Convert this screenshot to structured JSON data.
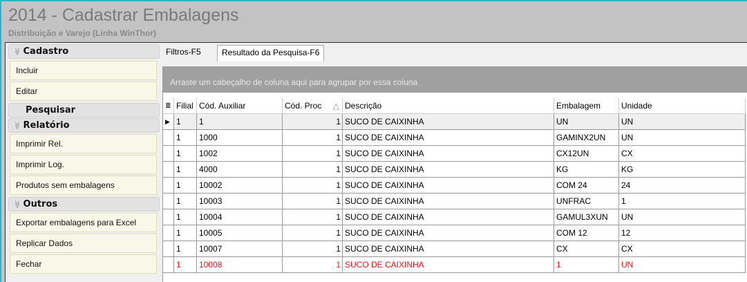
{
  "window": {
    "title": "2014 - Cadastrar Embalagens",
    "subtitle": "Distribuição e Varejo (Linha WinThor)"
  },
  "sidebar": {
    "groups": [
      {
        "label": "Cadastro",
        "items": [
          "Incluir",
          "Editar"
        ]
      },
      {
        "label": "Pesquisar",
        "items": []
      },
      {
        "label": "Relatório",
        "items": [
          "Imprimir Rel.",
          "Imprimir Log.",
          "Produtos sem embalagens"
        ]
      },
      {
        "label": "Outros",
        "items": [
          "Exportar embalagens para Excel",
          "Replicar Dados",
          "Fechar"
        ]
      }
    ]
  },
  "tabs": [
    {
      "label": "Filtros-F5"
    },
    {
      "label": "Resultado da Pesquisa-F6",
      "active": true
    }
  ],
  "grid": {
    "group_hint": "Arraste um cabeçalho de coluna aqui para agrupar por essa coluna",
    "columns": [
      "Filial",
      "Cód. Auxiliar",
      "Cód. Proc",
      "Descrição",
      "Embalagem",
      "Unidade"
    ],
    "sort_indicator": "△",
    "rows": [
      [
        "1",
        "1",
        "1",
        "SUCO DE CAIXINHA",
        "UN",
        "UN"
      ],
      [
        "1",
        "1000",
        "1",
        "SUCO DE CAIXINHA",
        "GAMINX2UN",
        "UN"
      ],
      [
        "1",
        "1002",
        "1",
        "SUCO DE CAIXINHA",
        "CX12UN",
        "CX"
      ],
      [
        "1",
        "4000",
        "1",
        "SUCO DE CAIXINHA",
        "KG",
        "KG"
      ],
      [
        "1",
        "10002",
        "1",
        "SUCO DE CAIXINHA",
        "COM 24",
        "24"
      ],
      [
        "1",
        "10003",
        "1",
        "SUCO DE CAIXINHA",
        "UNFRAC",
        "1"
      ],
      [
        "1",
        "10004",
        "1",
        "SUCO DE CAIXINHA",
        "GAMUL3XUN",
        "UN"
      ],
      [
        "1",
        "10005",
        "1",
        "SUCO DE CAIXINHA",
        "COM 12",
        "12"
      ],
      [
        "1",
        "10007",
        "1",
        "SUCO DE CAIXINHA",
        "CX",
        "CX"
      ],
      [
        "1",
        "10008",
        "1",
        "SUCO DE CAIXINHA",
        "1",
        "UN"
      ]
    ],
    "selected_row": 0,
    "highlight_row": 9,
    "highlight_color": "#e8141c"
  }
}
